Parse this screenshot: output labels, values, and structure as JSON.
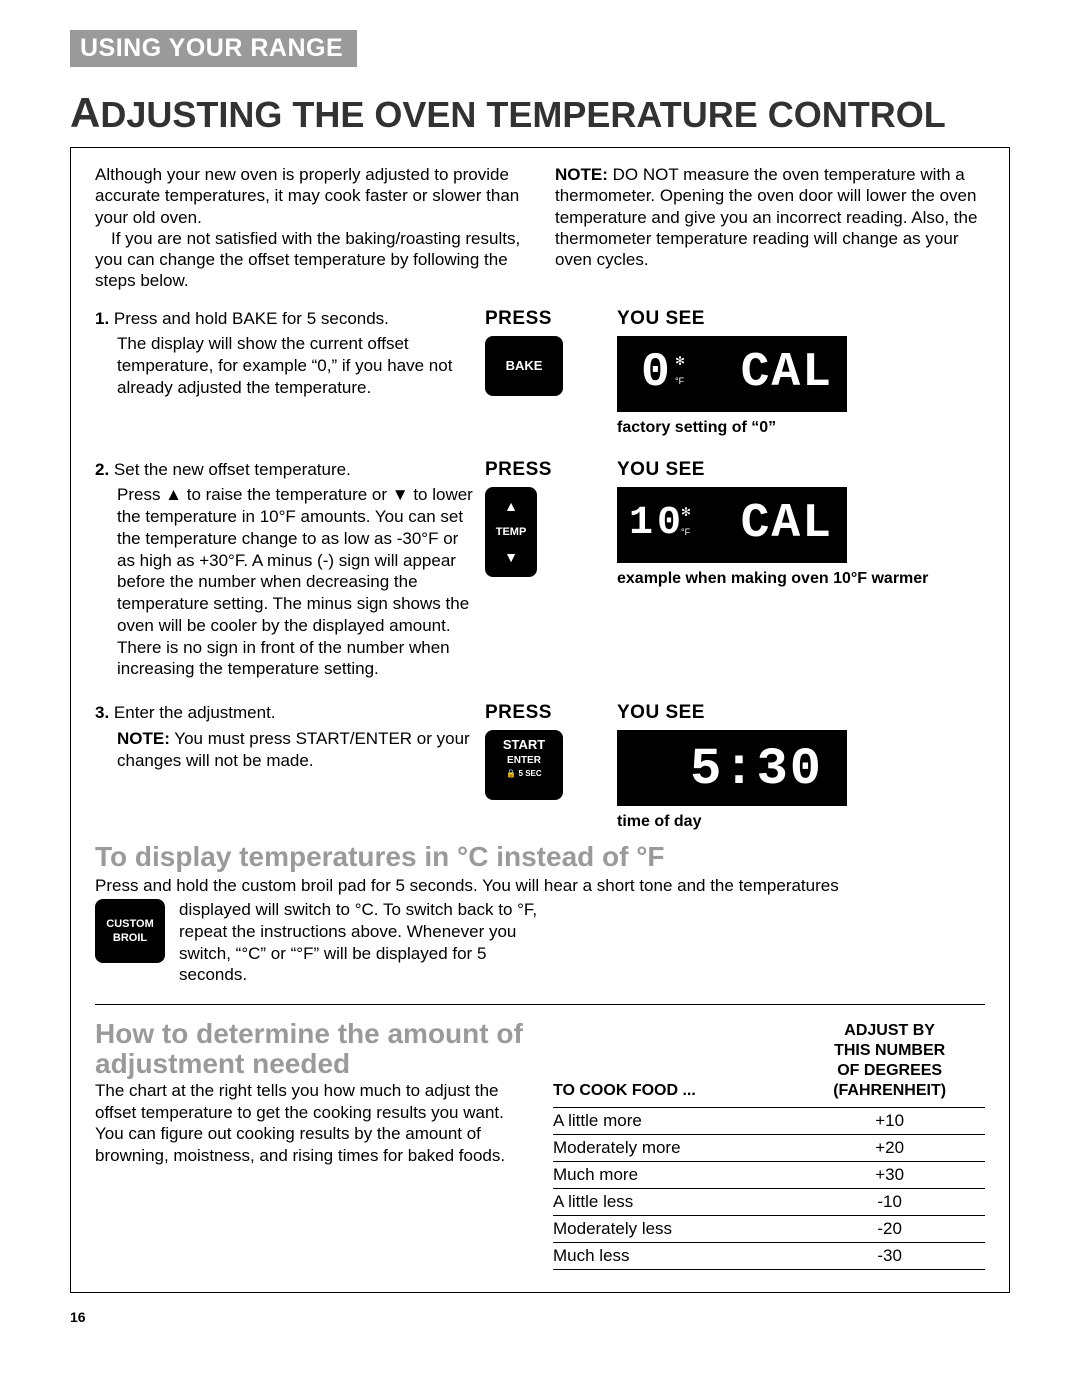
{
  "header": {
    "section": "USING YOUR RANGE"
  },
  "title": {
    "first": "A",
    "rest": "DJUSTING THE OVEN TEMPERATURE CONTROL"
  },
  "intro": {
    "left_p1": "Although your new oven is properly adjusted to provide accurate temperatures, it may cook faster or slower than your old oven.",
    "left_p2": "If you are not satisfied with the baking/roasting results, you can change the offset temperature by following the steps below.",
    "right": "NOTE: DO NOT measure the oven temperature with a thermometer. Opening the oven door will lower the oven temperature and give you an incorrect reading. Also, the thermometer temperature reading will change as your oven cycles.",
    "right_bold": "NOTE:"
  },
  "cols": {
    "press": "PRESS",
    "yousee": "YOU SEE"
  },
  "steps": [
    {
      "num": "1.",
      "title": "Press and hold BAKE for 5 seconds.",
      "body": "The display will show the current offset temperature, for example “0,” if you have not already adjusted the temperature.",
      "button": "BAKE",
      "display_left": "0",
      "display_right": "CAL",
      "display_deg": "°F",
      "caption": "factory setting of “0”"
    },
    {
      "num": "2.",
      "title": "Set the new offset temperature.",
      "body": "Press ▲ to raise the temperature or ▼ to lower the temperature in 10°F amounts. You can set the temperature change to as low as -30°F or as high as +30°F. A minus (-) sign will appear before the number when decreasing the temperature setting. The minus sign shows the oven will be cooler by the displayed amount. There is no sign in front of the number when increasing the temperature setting.",
      "button": "TEMP",
      "display_left": "10",
      "display_right": "CAL",
      "display_deg": "°F",
      "caption": "example when making oven 10°F warmer"
    },
    {
      "num": "3.",
      "title": "Enter the adjustment.",
      "body_bold": "NOTE:",
      "body": " You must press START/ENTER or your changes will not be made.",
      "button_l1": "START",
      "button_l2": "ENTER",
      "button_l3": "5 SEC",
      "display_left": "",
      "display_right": "5:30",
      "caption": "time of day"
    }
  ],
  "celsius": {
    "heading": "To display temperatures in °C instead of °F",
    "line1": "Press and hold the custom broil pad for 5 seconds. You will hear a short tone and the temperatures",
    "line2": "displayed will switch to °C. To switch back to °F, repeat the instructions above. Whenever you switch, “°C” or “°F” will be displayed for 5 seconds.",
    "btn_l1": "CUSTOM",
    "btn_l2": "BROIL"
  },
  "adjust": {
    "heading": "How to determine the amount of adjustment needed",
    "text": "The chart at the right tells you how much to adjust the offset temperature to get the cooking results you want. You can figure out cooking results by the amount of browning, moistness, and rising times for baked foods.",
    "th1": "TO COOK FOOD ...",
    "th2": "ADJUST BY\nTHIS NUMBER\nOF DEGREES\n(FAHRENHEIT)",
    "rows": [
      {
        "c1": "A little more",
        "c2": "+10"
      },
      {
        "c1": "Moderately more",
        "c2": "+20"
      },
      {
        "c1": "Much more",
        "c2": "+30"
      },
      {
        "c1": "A little less",
        "c2": "-10"
      },
      {
        "c1": "Moderately less",
        "c2": "-20"
      },
      {
        "c1": "Much less",
        "c2": "-30"
      }
    ]
  },
  "page_number": "16"
}
